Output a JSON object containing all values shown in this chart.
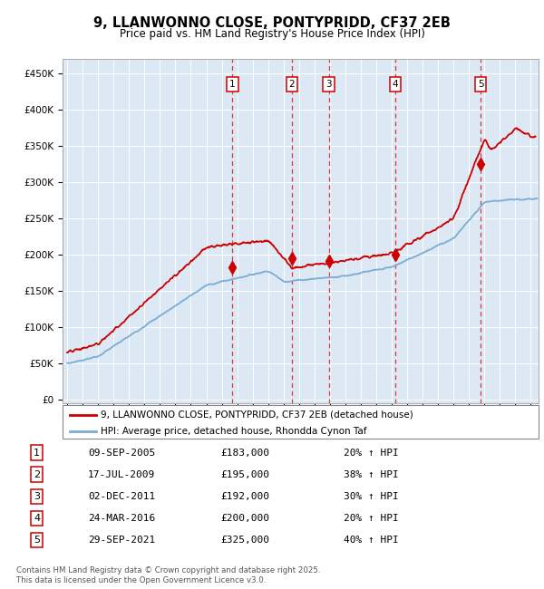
{
  "title_line1": "9, LLANWONNO CLOSE, PONTYPRIDD, CF37 2EB",
  "title_line2": "Price paid vs. HM Land Registry's House Price Index (HPI)",
  "ylabel_ticks": [
    "£0",
    "£50K",
    "£100K",
    "£150K",
    "£200K",
    "£250K",
    "£300K",
    "£350K",
    "£400K",
    "£450K"
  ],
  "ylabel_values": [
    0,
    50000,
    100000,
    150000,
    200000,
    250000,
    300000,
    350000,
    400000,
    450000
  ],
  "xlim_start": 1994.7,
  "xlim_end": 2025.5,
  "ylim_min": -5000,
  "ylim_max": 470000,
  "sale_dates": [
    2005.69,
    2009.54,
    2011.92,
    2016.23,
    2021.75
  ],
  "sale_prices": [
    183000,
    195000,
    192000,
    200000,
    325000
  ],
  "sale_labels": [
    "1",
    "2",
    "3",
    "4",
    "5"
  ],
  "legend_line1": "9, LLANWONNO CLOSE, PONTYPRIDD, CF37 2EB (detached house)",
  "legend_line2": "HPI: Average price, detached house, Rhondda Cynon Taf",
  "table_data": [
    [
      "1",
      "09-SEP-2005",
      "£183,000",
      "20% ↑ HPI"
    ],
    [
      "2",
      "17-JUL-2009",
      "£195,000",
      "38% ↑ HPI"
    ],
    [
      "3",
      "02-DEC-2011",
      "£192,000",
      "30% ↑ HPI"
    ],
    [
      "4",
      "24-MAR-2016",
      "£200,000",
      "20% ↑ HPI"
    ],
    [
      "5",
      "29-SEP-2021",
      "£325,000",
      "40% ↑ HPI"
    ]
  ],
  "footnote": "Contains HM Land Registry data © Crown copyright and database right 2025.\nThis data is licensed under the Open Government Licence v3.0.",
  "background_color": "#dde8f5",
  "line_color_hpi": "#7aadd4",
  "line_color_price": "#cc0000",
  "dashed_line_color": "#dd2222"
}
